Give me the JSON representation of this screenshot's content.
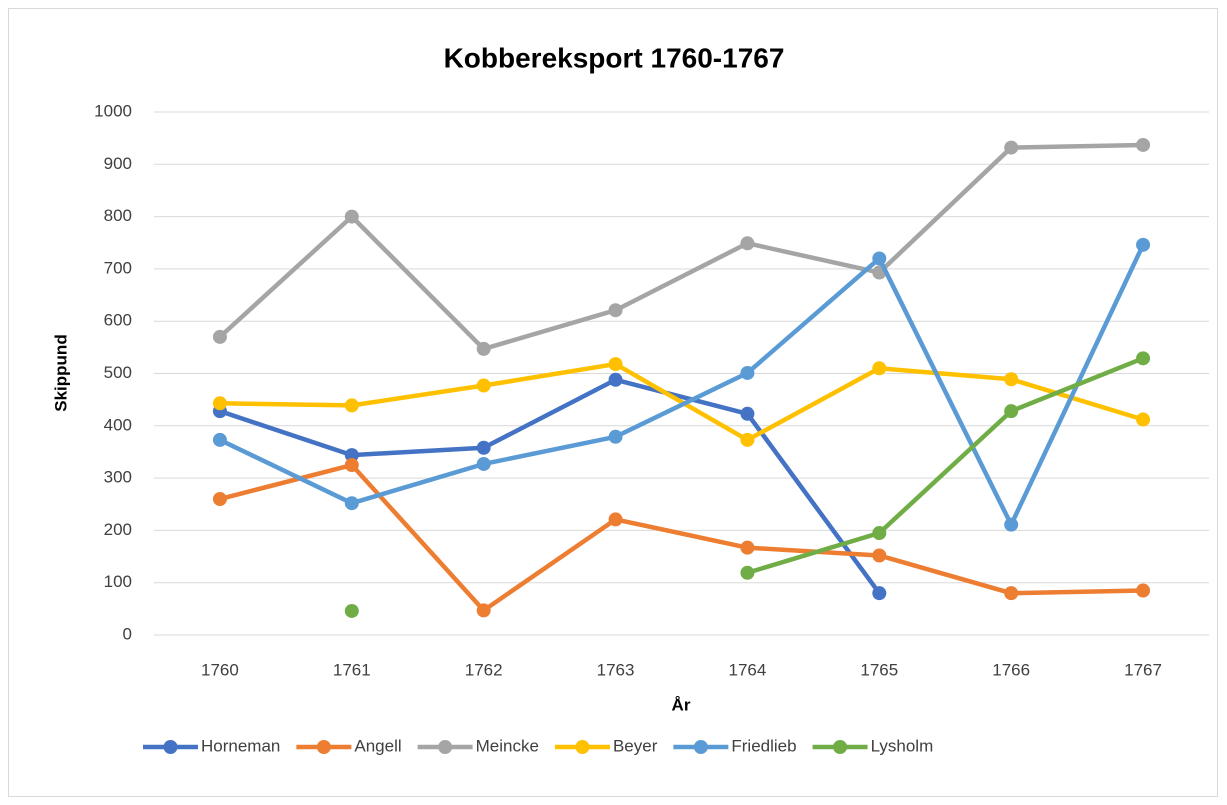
{
  "chart_data": {
    "type": "line",
    "title": "Kobbereksport 1760-1767",
    "x_label": "År",
    "y_label": "Skippund",
    "categories": [
      "1760",
      "1761",
      "1762",
      "1763",
      "1764",
      "1765",
      "1766",
      "1767"
    ],
    "series": [
      {
        "name": "Horneman",
        "color": "#4472c4",
        "values": [
          428,
          344,
          358,
          488,
          423,
          80,
          null,
          null
        ]
      },
      {
        "name": "Angell",
        "color": "#ed7d31",
        "values": [
          260,
          325,
          47,
          221,
          167,
          152,
          80,
          85
        ]
      },
      {
        "name": "Meincke",
        "color": "#a5a5a5",
        "values": [
          570,
          800,
          547,
          621,
          749,
          693,
          932,
          937
        ]
      },
      {
        "name": "Beyer",
        "color": "#ffc000",
        "values": [
          443,
          439,
          477,
          518,
          373,
          510,
          489,
          412
        ]
      },
      {
        "name": "Friedlieb",
        "color": "#5b9bd5",
        "values": [
          373,
          252,
          327,
          379,
          501,
          720,
          211,
          746
        ]
      },
      {
        "name": "Lysholm",
        "color": "#70ad47",
        "values": [
          null,
          46,
          null,
          null,
          119,
          195,
          428,
          529
        ]
      }
    ],
    "ylim": [
      0,
      1000
    ],
    "yticks": [
      0,
      100,
      200,
      300,
      400,
      500,
      600,
      700,
      800,
      900,
      1000
    ],
    "grid": true,
    "legend": "bottom"
  }
}
